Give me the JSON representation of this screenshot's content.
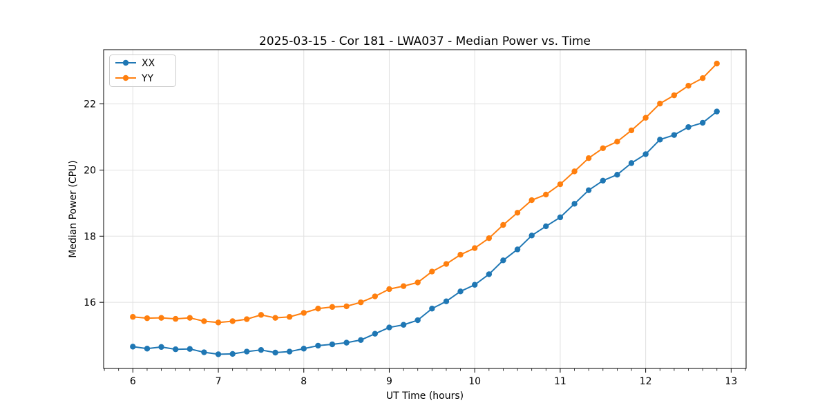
{
  "title": "2025-03-15 - Cor 181 - LWA037 - Median Power vs. Time",
  "chart_data": {
    "type": "line",
    "title": "2025-03-15 - Cor 181 - LWA037 - Median Power vs. Time",
    "xlabel": "UT Time (hours)",
    "ylabel": "Median Power (CPU)",
    "xlim": [
      5.658,
      13.175
    ],
    "ylim": [
      14.0,
      23.64
    ],
    "x_ticks": [
      6,
      7,
      8,
      9,
      10,
      11,
      12,
      13
    ],
    "y_ticks": [
      16,
      18,
      20,
      22
    ],
    "x_minor_interval": 0.16667,
    "grid": true,
    "grid_color": "#e0e0e0",
    "legend_position": "upper-left",
    "marker": "circle",
    "x": [
      6.0,
      6.167,
      6.333,
      6.5,
      6.667,
      6.833,
      7.0,
      7.167,
      7.333,
      7.5,
      7.667,
      7.833,
      8.0,
      8.167,
      8.333,
      8.5,
      8.667,
      8.833,
      9.0,
      9.167,
      9.333,
      9.5,
      9.667,
      9.833,
      10.0,
      10.167,
      10.333,
      10.5,
      10.667,
      10.833,
      11.0,
      11.167,
      11.333,
      11.5,
      11.667,
      11.833,
      12.0,
      12.167,
      12.333,
      12.5,
      12.667,
      12.833
    ],
    "series": [
      {
        "name": "XX",
        "color": "#1f77b4",
        "values": [
          14.66,
          14.6,
          14.65,
          14.58,
          14.59,
          14.49,
          14.43,
          14.44,
          14.51,
          14.56,
          14.48,
          14.51,
          14.6,
          14.69,
          14.73,
          14.78,
          14.86,
          15.05,
          15.24,
          15.32,
          15.46,
          15.81,
          16.03,
          16.33,
          16.53,
          16.85,
          17.27,
          17.6,
          18.02,
          18.3,
          18.57,
          18.98,
          19.39,
          19.68,
          19.86,
          20.21,
          20.48,
          20.92,
          21.06,
          21.3,
          21.43,
          21.77
        ]
      },
      {
        "name": "YY",
        "color": "#ff7f0e",
        "values": [
          15.56,
          15.52,
          15.53,
          15.5,
          15.53,
          15.43,
          15.39,
          15.43,
          15.49,
          15.62,
          15.53,
          15.56,
          15.68,
          15.81,
          15.86,
          15.88,
          16.0,
          16.18,
          16.4,
          16.49,
          16.6,
          16.93,
          17.16,
          17.44,
          17.64,
          17.94,
          18.34,
          18.71,
          19.09,
          19.26,
          19.57,
          19.96,
          20.36,
          20.66,
          20.86,
          21.2,
          21.58,
          22.01,
          22.26,
          22.55,
          22.78,
          23.22
        ]
      }
    ]
  }
}
